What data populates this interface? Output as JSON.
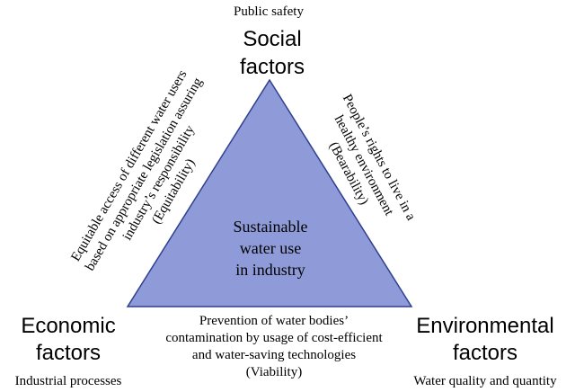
{
  "diagram": {
    "top_note": "Public safety",
    "top_vertex": [
      "Social",
      "factors"
    ],
    "left_vertex": [
      "Economic",
      "factors"
    ],
    "left_note": "Industrial processes",
    "right_vertex": [
      "Environmental",
      "factors"
    ],
    "right_note": "Water quality and quantity",
    "center": [
      "Sustainable",
      "water use",
      "in industry"
    ],
    "left_edge": [
      "Equitable access of different water users",
      "based on appropriate legislation assuring",
      "industry’s responsibility",
      "(Equitability)"
    ],
    "right_edge": [
      "People’s rights to live in a",
      "healthy environment",
      "(Bearability)"
    ],
    "bottom_edge": [
      "Prevention of water bodies’",
      "contamination by usage of cost-efficient",
      "and water-saving technologies",
      "(Viability)"
    ],
    "colors": {
      "triangle_fill": "#8E9BD8",
      "triangle_stroke": "#2E3F8F"
    }
  }
}
